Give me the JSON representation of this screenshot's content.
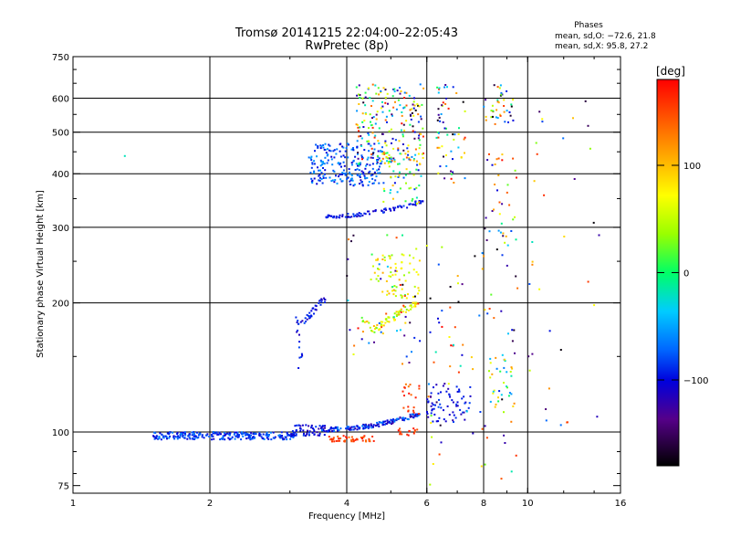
{
  "chart_data": {
    "type": "scatter",
    "title": "Tromsø 20141215 22:04:00–22:05:43",
    "subtitle": "RwPretec (8p)",
    "phase_header": "Phases",
    "phase_stats": [
      "mean, sd,O: −72.6, 21.8",
      "mean, sd,X:  95.8, 27.2"
    ],
    "xlabel": "Frequency [MHz]",
    "ylabel": "Stationary phase Virtual Height [km]",
    "x_scale": "log2",
    "y_scale": "log",
    "xlim": [
      1,
      16
    ],
    "ylim": [
      72,
      750
    ],
    "grid": true,
    "x_ticks": [
      {
        "v": 1,
        "label": "1"
      },
      {
        "v": 2,
        "label": "2"
      },
      {
        "v": 4,
        "label": "4"
      },
      {
        "v": 6,
        "label": "6"
      },
      {
        "v": 8,
        "label": "8"
      },
      {
        "v": 10,
        "label": "10"
      },
      {
        "v": 16,
        "label": "16"
      }
    ],
    "x_grid": [
      2,
      4,
      6,
      8,
      10
    ],
    "y_ticks": [
      {
        "v": 75,
        "label": "75"
      },
      {
        "v": 100,
        "label": "100"
      },
      {
        "v": 200,
        "label": "200"
      },
      {
        "v": 300,
        "label": "300"
      },
      {
        "v": 400,
        "label": "400"
      },
      {
        "v": 500,
        "label": "500"
      },
      {
        "v": 600,
        "label": "600"
      },
      {
        "v": 750,
        "label": "750"
      }
    ],
    "y_grid": [
      100,
      200,
      300,
      400,
      500,
      600
    ],
    "colorbar": {
      "label": "[deg]",
      "range": [
        -180,
        180
      ],
      "ticks": [
        {
          "v": 100,
          "label": "100"
        },
        {
          "v": 0,
          "label": "0"
        },
        {
          "v": -100,
          "label": "−100"
        }
      ]
    },
    "clusters": [
      {
        "f": [
          1.5,
          3.1
        ],
        "h": [
          96,
          100
        ],
        "p": [
          -110,
          -60
        ],
        "n": 260,
        "shape": "flat"
      },
      {
        "f": [
          3.0,
          3.6
        ],
        "h": [
          98,
          104
        ],
        "p": [
          -120,
          -80
        ],
        "n": 60,
        "shape": "flat"
      },
      {
        "f": [
          3.5,
          5.8
        ],
        "h": [
          100,
          110
        ],
        "p": [
          -125,
          -60
        ],
        "n": 160,
        "shape": "riseE"
      },
      {
        "f": [
          3.6,
          4.6
        ],
        "h": [
          95,
          98
        ],
        "p": [
          130,
          175
        ],
        "n": 45,
        "shape": "flat"
      },
      {
        "f": [
          5.2,
          5.8
        ],
        "h": [
          98,
          102
        ],
        "p": [
          140,
          175
        ],
        "n": 15,
        "shape": "flat"
      },
      {
        "f": [
          5.3,
          5.8
        ],
        "h": [
          110,
          130
        ],
        "p": [
          120,
          175
        ],
        "n": 20,
        "shape": "box"
      },
      {
        "f": [
          3.1,
          3.2
        ],
        "h": [
          140,
          175
        ],
        "p": [
          -120,
          -60
        ],
        "n": 10,
        "shape": "box"
      },
      {
        "f": [
          3.05,
          3.6
        ],
        "h": [
          175,
          205
        ],
        "p": [
          -120,
          -80
        ],
        "n": 40,
        "shape": "dipF1"
      },
      {
        "f": [
          4.3,
          5.7
        ],
        "h": [
          170,
          200
        ],
        "p": [
          10,
          110
        ],
        "n": 80,
        "shape": "dipF1"
      },
      {
        "f": [
          4.5,
          5.8
        ],
        "h": [
          205,
          260
        ],
        "p": [
          30,
          110
        ],
        "n": 70,
        "shape": "box"
      },
      {
        "f": [
          4.0,
          5.8
        ],
        "h": [
          140,
          300
        ],
        "p": [
          -180,
          180
        ],
        "n": 50,
        "shape": "box"
      },
      {
        "f": [
          3.3,
          4.8
        ],
        "h": [
          375,
          470
        ],
        "p": [
          -110,
          -50
        ],
        "n": 220,
        "shape": "box"
      },
      {
        "f": [
          3.6,
          5.9
        ],
        "h": [
          315,
          345
        ],
        "p": [
          -115,
          -80
        ],
        "n": 90,
        "shape": "riseF2"
      },
      {
        "f": [
          4.2,
          5.9
        ],
        "h": [
          420,
          650
        ],
        "p": [
          -180,
          180
        ],
        "n": 210,
        "shape": "box"
      },
      {
        "f": [
          4.8,
          5.9
        ],
        "h": [
          340,
          450
        ],
        "p": [
          -100,
          110
        ],
        "n": 60,
        "shape": "box"
      },
      {
        "f": [
          6.0,
          7.5
        ],
        "h": [
          105,
          130
        ],
        "p": [
          -120,
          -80
        ],
        "n": 70,
        "shape": "box"
      },
      {
        "f": [
          6.0,
          9.5
        ],
        "h": [
          75,
          300
        ],
        "p": [
          -180,
          180
        ],
        "n": 90,
        "shape": "box"
      },
      {
        "f": [
          6.3,
          7.3
        ],
        "h": [
          380,
          650
        ],
        "p": [
          -180,
          180
        ],
        "n": 60,
        "shape": "box"
      },
      {
        "f": [
          8.0,
          9.3
        ],
        "h": [
          520,
          650
        ],
        "p": [
          -180,
          180
        ],
        "n": 40,
        "shape": "box"
      },
      {
        "f": [
          8.0,
          9.5
        ],
        "h": [
          250,
          450
        ],
        "p": [
          -180,
          180
        ],
        "n": 35,
        "shape": "box"
      },
      {
        "f": [
          8.2,
          9.3
        ],
        "h": [
          110,
          150
        ],
        "p": [
          -110,
          120
        ],
        "n": 30,
        "shape": "box"
      },
      {
        "f": [
          10.0,
          14.5
        ],
        "h": [
          100,
          600
        ],
        "p": [
          -180,
          180
        ],
        "n": 35,
        "shape": "box"
      },
      {
        "f": [
          1.3,
          1.3
        ],
        "h": [
          440,
          440
        ],
        "p": [
          -20,
          -20
        ],
        "n": 1,
        "shape": "box"
      }
    ]
  }
}
